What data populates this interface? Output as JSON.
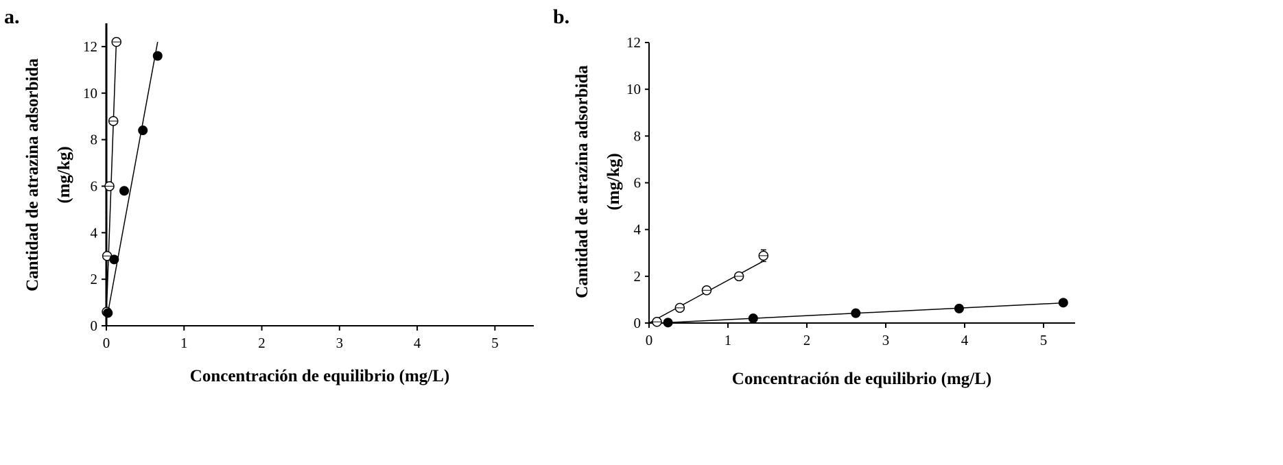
{
  "chart_data": [
    {
      "type": "scatter",
      "panel_label": "a.",
      "xlabel": "Concentración de equilibrio (mg/L)",
      "ylabel_line1": "Cantidad de atrazina adsorbida",
      "ylabel_line2": "(mg/kg)",
      "xlim": [
        0,
        5.5
      ],
      "ylim": [
        0,
        13
      ],
      "xticks": [
        0,
        1,
        2,
        3,
        4,
        5
      ],
      "yticks": [
        0,
        2,
        4,
        6,
        8,
        10,
        12
      ],
      "grid": false,
      "legend": "none",
      "series": [
        {
          "name": "open circles",
          "marker": "open",
          "x": [
            0.005,
            0.01,
            0.04,
            0.09,
            0.13
          ],
          "y": [
            0.6,
            3.0,
            6.0,
            8.8,
            12.2
          ],
          "fit_line": {
            "x": [
              0.0,
              0.13
            ],
            "y": [
              0.4,
              12.4
            ]
          }
        },
        {
          "name": "filled circles",
          "marker": "filled",
          "x": [
            0.02,
            0.1,
            0.23,
            0.47,
            0.66
          ],
          "y": [
            0.55,
            2.85,
            5.8,
            8.4,
            11.6
          ],
          "fit_line": {
            "x": [
              0.0,
              0.66
            ],
            "y": [
              0.2,
              12.2
            ]
          }
        }
      ]
    },
    {
      "type": "scatter",
      "panel_label": "b.",
      "xlabel": "Concentración de equilibrio (mg/L)",
      "ylabel_line1": "Cantidad de atrazina adsorbida",
      "ylabel_line2": "(mg/kg)",
      "xlim": [
        0,
        5.4
      ],
      "ylim": [
        0,
        12
      ],
      "xticks": [
        0,
        1,
        2,
        3,
        4,
        5
      ],
      "yticks": [
        0,
        2,
        4,
        6,
        8,
        10,
        12
      ],
      "grid": false,
      "legend": "none",
      "series": [
        {
          "name": "open circles",
          "marker": "open",
          "x": [
            0.1,
            0.39,
            0.73,
            1.14,
            1.45
          ],
          "y": [
            0.05,
            0.65,
            1.4,
            2.0,
            2.88
          ],
          "err": [
            0.05,
            0.15,
            0.15,
            0.15,
            0.25
          ],
          "fit_line": {
            "x": [
              0.0,
              1.45
            ],
            "y": [
              0.0,
              2.65
            ]
          }
        },
        {
          "name": "filled circles",
          "marker": "filled",
          "x": [
            0.24,
            1.32,
            2.62,
            3.93,
            5.25
          ],
          "y": [
            0.02,
            0.2,
            0.42,
            0.62,
            0.87
          ],
          "fit_line": {
            "x": [
              0.24,
              5.25
            ],
            "y": [
              0.02,
              0.86
            ]
          }
        }
      ]
    }
  ]
}
